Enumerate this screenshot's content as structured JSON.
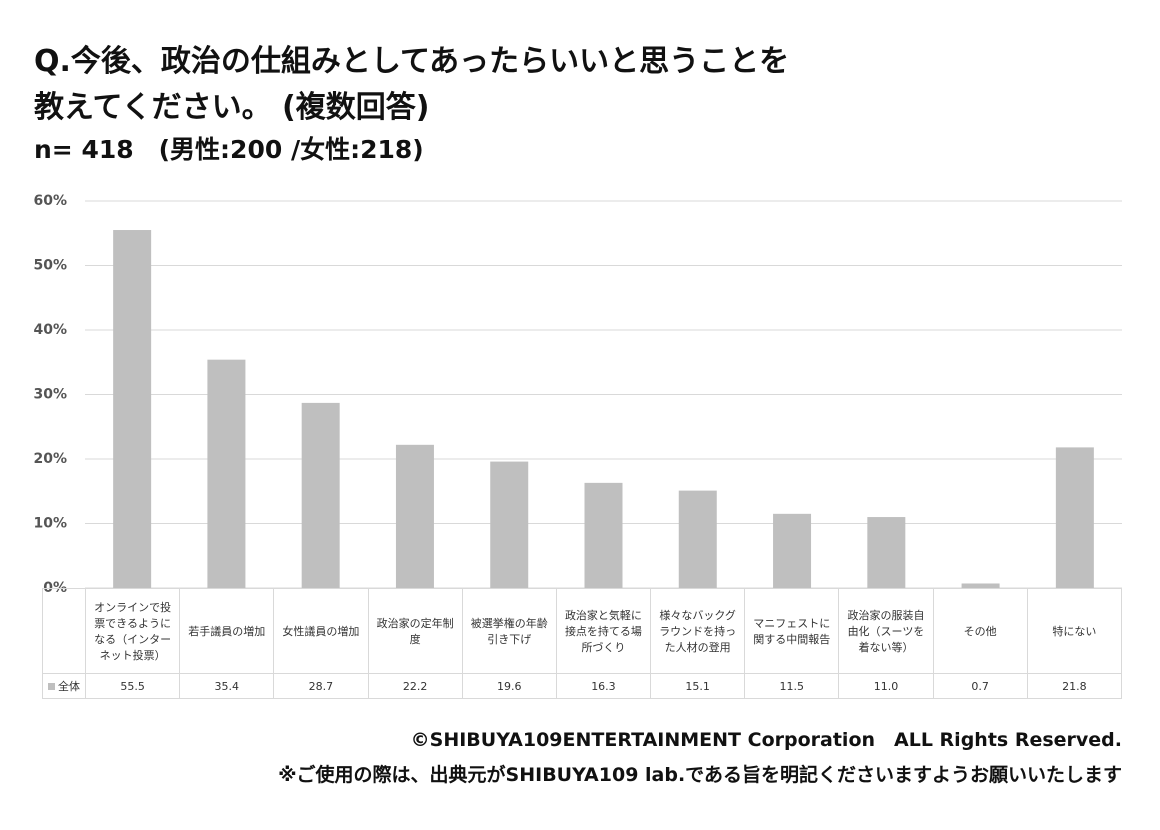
{
  "chart_data": {
    "type": "bar",
    "title": [
      "Q.今後、政治の仕組みとしてあったらいいと思うことを",
      "教えてください。 (複数回答)"
    ],
    "subtitle": "n= 418　(男性:200 /女性:218)",
    "categories": [
      "オンラインで投票できるようになる（インターネット投票）",
      "若手議員の増加",
      "女性議員の増加",
      "政治家の定年制度",
      "被選挙権の年齢引き下げ",
      "政治家と気軽に接点を持てる場所づくり",
      "様々なバックグラウンドを持った人材の登用",
      "マニフェストに関する中間報告",
      "政治家の服装自由化（スーツを着ない等）",
      "その他",
      "特にない"
    ],
    "series": [
      {
        "name": "全体",
        "color": "#bfbfbf",
        "values": [
          55.5,
          35.4,
          28.7,
          22.2,
          19.6,
          16.3,
          15.1,
          11.5,
          11.0,
          0.7,
          21.8
        ],
        "value_labels": [
          "55.5",
          "35.4",
          "28.7",
          "22.2",
          "19.6",
          "16.3",
          "15.1",
          "11.5",
          "11.0",
          "0.7",
          "21.8"
        ]
      }
    ],
    "ylim": [
      0,
      60
    ],
    "yticks": [
      {
        "value": 0,
        "label": "0%"
      },
      {
        "value": 10,
        "label": "10%"
      },
      {
        "value": 20,
        "label": "20%"
      },
      {
        "value": 30,
        "label": "30%"
      },
      {
        "value": 40,
        "label": "40%"
      },
      {
        "value": 50,
        "label": "50%"
      },
      {
        "value": 60,
        "label": "60%"
      }
    ],
    "grid": true,
    "footer": [
      "©SHIBUYA109ENTERTAINMENT Corporation　ALL Rights Reserved.",
      "※ご使用の際は、出典元がSHIBUYA109 lab.である旨を明記くださいますようお願いいたします"
    ]
  }
}
